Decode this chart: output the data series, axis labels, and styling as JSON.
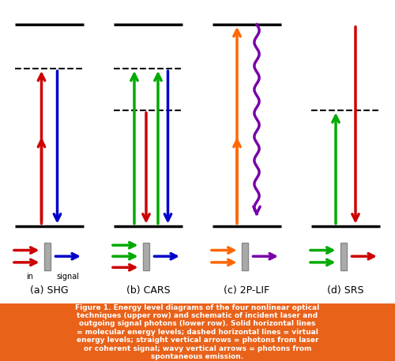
{
  "bg_color": "#ffffff",
  "caption_bg": "#E8621A",
  "caption_text_color": "#ffffff",
  "caption": "Figure 1. Energy level diagrams of the four nonlinear optical\ntechniques (upper row) and schematic of incident laser and\noutgoing signal photons (lower row). Solid horizontal lines\n= molecular energy levels; dashed horizontal lines = virtual\nenergy levels; straight vertical arrows = photons from laser\nor coherent signal; wavy vertical arrows = photons from\nspontaneous emission.",
  "labels": [
    "(a) SHG",
    "(b) CARS",
    "(c) 2P-LIF",
    "(d) SRS"
  ],
  "colors": {
    "red": "#CC0000",
    "blue": "#0000CC",
    "green": "#00AA00",
    "orange": "#FF6600",
    "purple": "#7700AA"
  }
}
